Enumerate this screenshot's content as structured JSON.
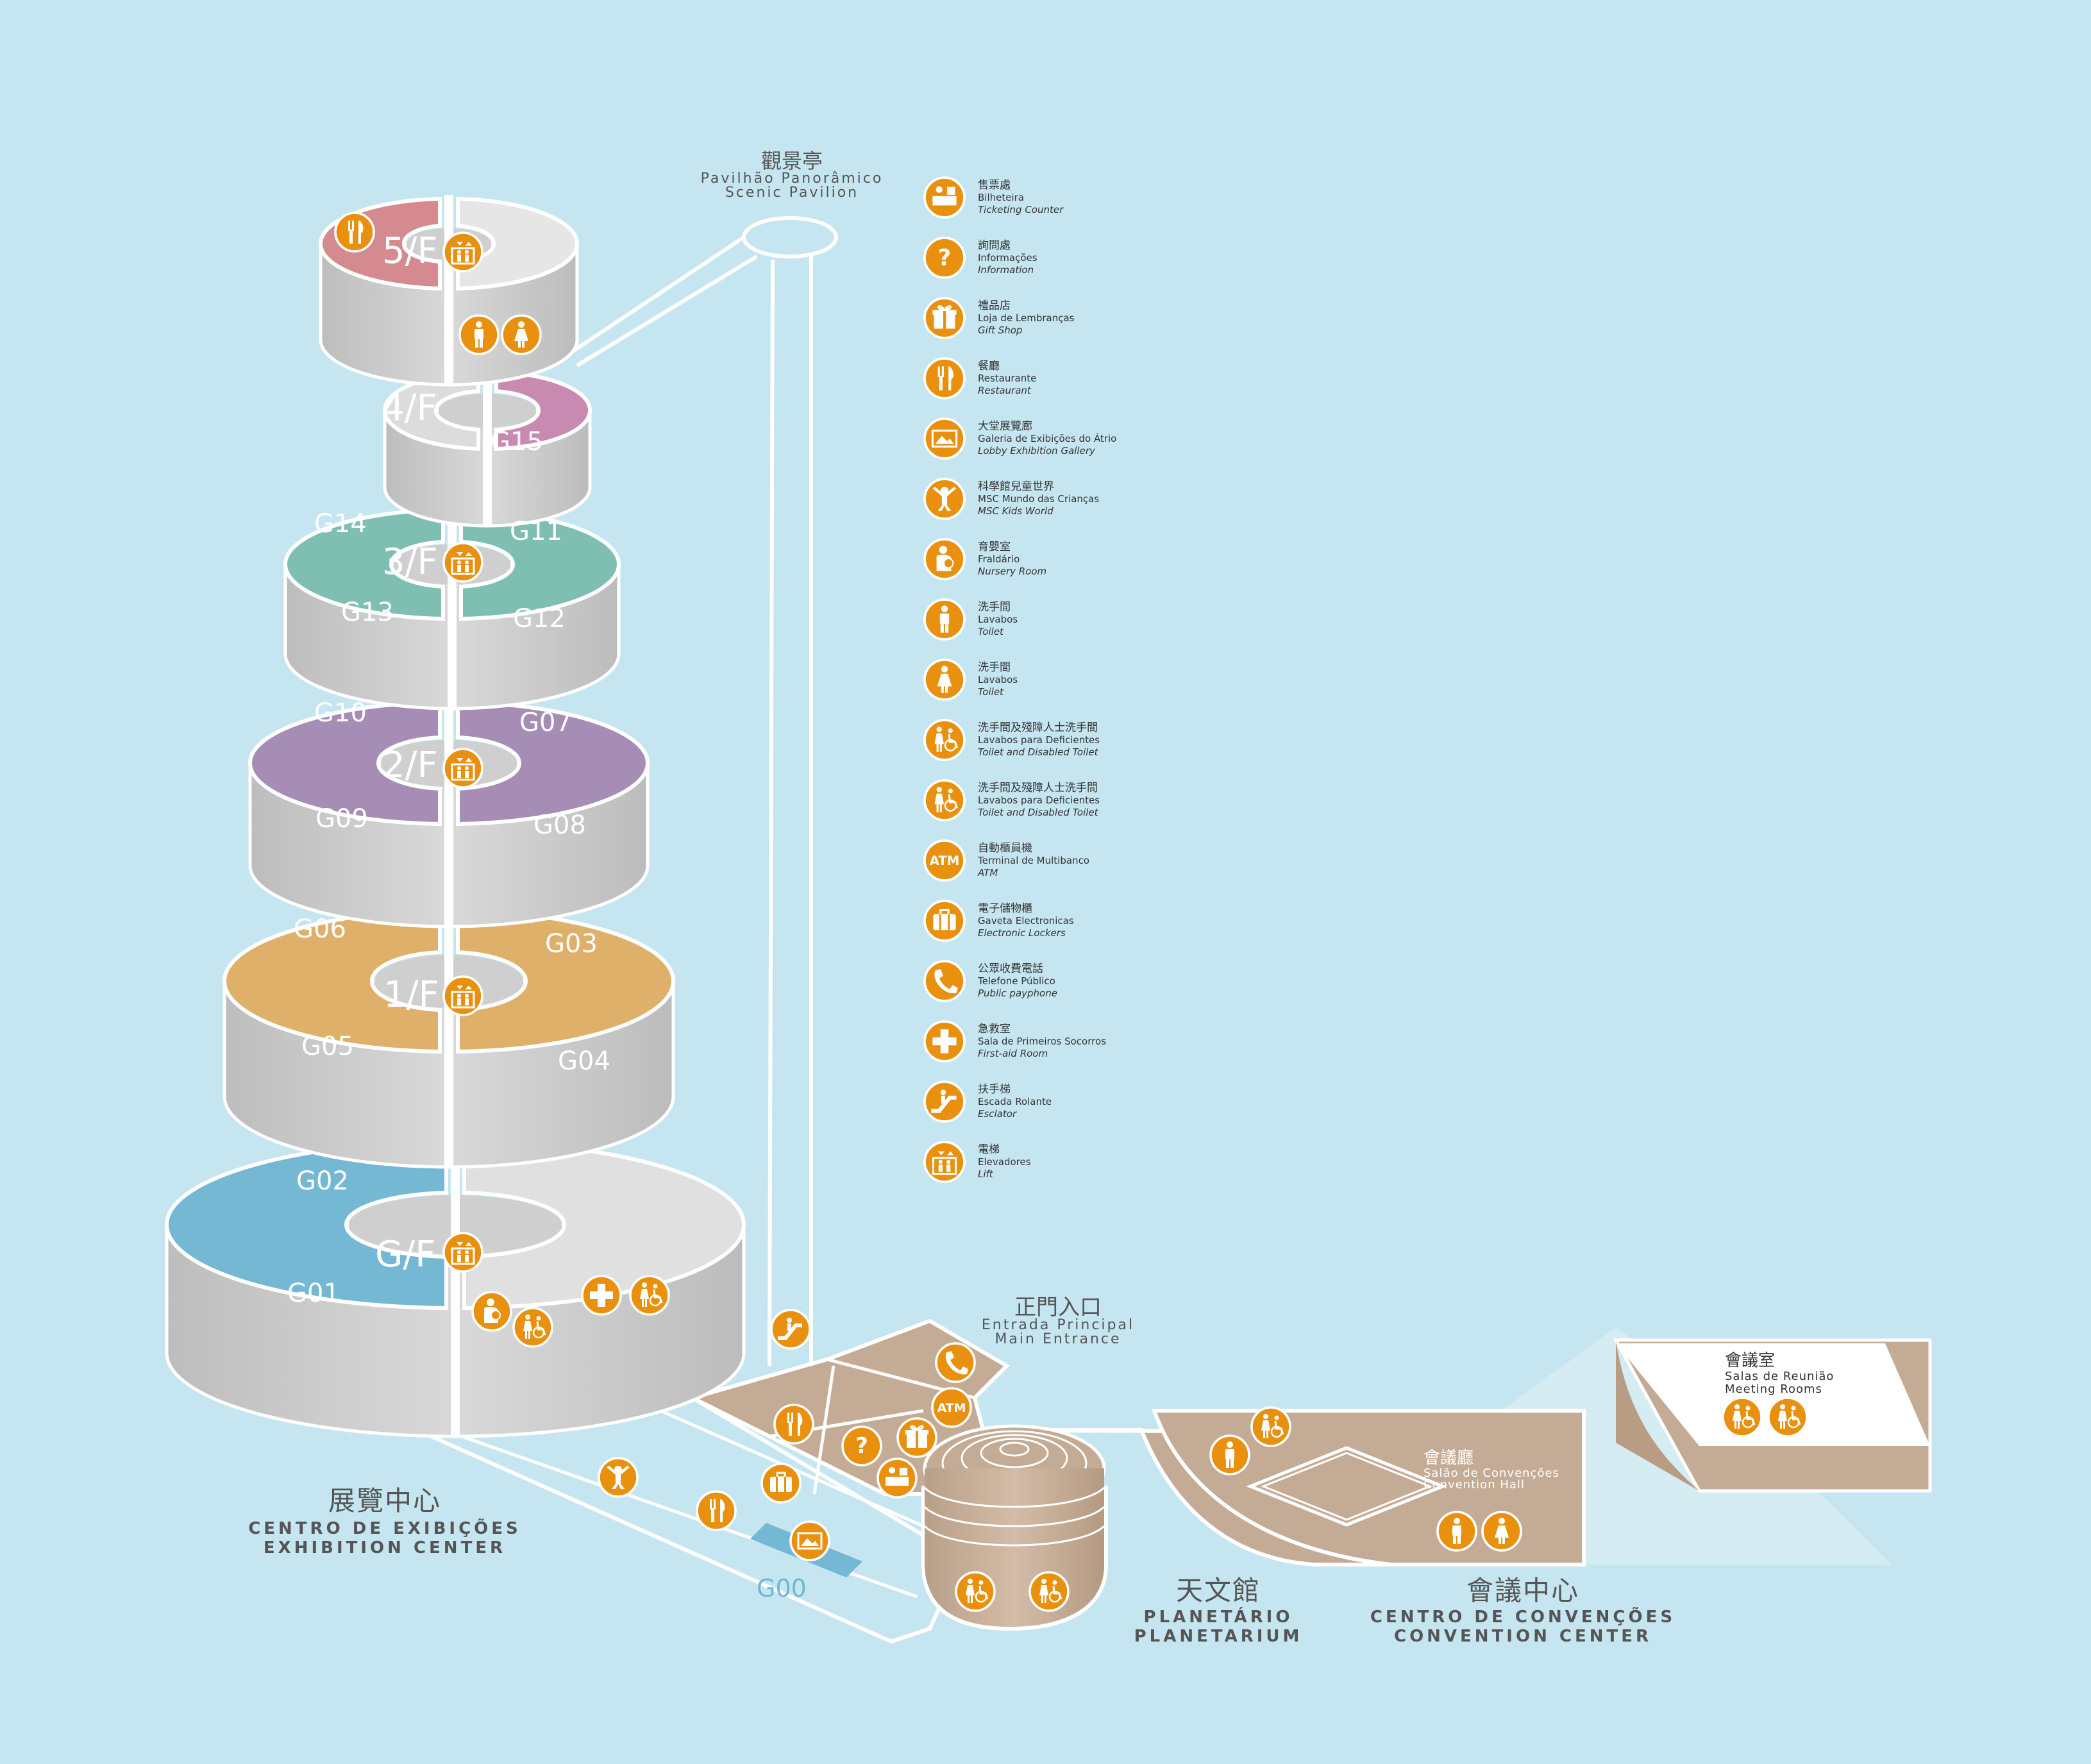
{
  "colors": {
    "background": "#c5e6f1",
    "wall": "#c9c9c9",
    "wall_light": "#dedede",
    "icon": "#e9910f",
    "ground": "#c4ab95",
    "blue_floor": "#74b8d4",
    "yellow_floor": "#dfb06a",
    "purple_floor": "#a68db5",
    "teal_floor": "#7fbfb2",
    "pink_floor": "#c98ab2",
    "red_floor": "#d58a8f"
  },
  "floors": {
    "gf": "G/F",
    "f1": "1/F",
    "f2": "2/F",
    "f3": "3/F",
    "f4": "4/F",
    "f5": "5/F"
  },
  "galleries": {
    "g00": "G00",
    "g01": "G01",
    "g02": "G02",
    "g03": "G03",
    "g04": "G04",
    "g05": "G05",
    "g06": "G06",
    "g07": "G07",
    "g08": "G08",
    "g09": "G09",
    "g10": "G10",
    "g11": "G11",
    "g12": "G12",
    "g13": "G13",
    "g14": "G14",
    "g15": "G15"
  },
  "places": {
    "scenic": {
      "cn": "觀景亭",
      "pt": "Pavilhão Panorâmico",
      "en": "Scenic Pavilion"
    },
    "main_entrance": {
      "cn": "正門入口",
      "pt": "Entrada Principal",
      "en": "Main Entrance"
    },
    "meeting_rooms": {
      "cn": "會議室",
      "pt": "Salas de Reunião",
      "en": "Meeting Rooms"
    },
    "convention_hall": {
      "cn": "會議廳",
      "pt": "Salão de Convenções",
      "en": "Convention Hall"
    },
    "exhibition": {
      "cn": "展覽中心",
      "pt": "CENTRO DE EXIBIÇÕES",
      "en": "EXHIBITION CENTER"
    },
    "planetarium": {
      "cn": "天文館",
      "pt": "PLANETÁRIO",
      "en": "PLANETARIUM"
    },
    "convention": {
      "cn": "會議中心",
      "pt": "CENTRO DE CONVENÇÕES",
      "en": "CONVENTION CENTER"
    }
  },
  "legend": [
    {
      "icon": "ticket-icon",
      "cn": "售票處",
      "pt": "Bilheteira",
      "en": "Ticketing Counter"
    },
    {
      "icon": "info-icon",
      "cn": "詢問處",
      "pt": "Informações",
      "en": "Information"
    },
    {
      "icon": "gift-icon",
      "cn": "禮品店",
      "pt": "Loja de Lembranças",
      "en": "Gift Shop"
    },
    {
      "icon": "restaurant-icon",
      "cn": "餐廳",
      "pt": "Restaurante",
      "en": "Restaurant"
    },
    {
      "icon": "gallery-icon",
      "cn": "大堂展覽廊",
      "pt": "Galeria de Exibições do Átrio",
      "en": "Lobby Exhibition Gallery"
    },
    {
      "icon": "kids-icon",
      "cn": "科學館兒童世界",
      "pt": "MSC Mundo das Crianças",
      "en": "MSC Kids World"
    },
    {
      "icon": "nursery-icon",
      "cn": "育嬰室",
      "pt": "Fraldário",
      "en": "Nursery Room"
    },
    {
      "icon": "toilet-male-icon",
      "cn": "洗手間",
      "pt": "Lavabos",
      "en": "Toilet"
    },
    {
      "icon": "toilet-female-icon",
      "cn": "洗手間",
      "pt": "Lavabos",
      "en": "Toilet"
    },
    {
      "icon": "disabled-toilet-icon",
      "cn": "洗手間及殘障人士洗手間",
      "pt": "Lavabos para Deficientes",
      "en": "Toilet and Disabled Toilet"
    },
    {
      "icon": "disabled-toilet-icon",
      "cn": "洗手間及殘障人士洗手間",
      "pt": "Lavabos para Deficientes",
      "en": "Toilet and Disabled Toilet"
    },
    {
      "icon": "atm-icon",
      "cn": "自動櫃員機",
      "pt": "Terminal de Multibanco",
      "en": "ATM"
    },
    {
      "icon": "locker-icon",
      "cn": "電子儲物櫃",
      "pt": "Gaveta Electronicas",
      "en": "Electronic Lockers"
    },
    {
      "icon": "phone-icon",
      "cn": "公眾收費電話",
      "pt": "Telefone Público",
      "en": "Public payphone"
    },
    {
      "icon": "first-aid-icon",
      "cn": "急救室",
      "pt": "Sala de Primeiros Socorros",
      "en": "First-aid Room"
    },
    {
      "icon": "escalator-icon",
      "cn": "扶手梯",
      "pt": "Escada Rolante",
      "en": "Esclator"
    },
    {
      "icon": "lift-icon",
      "cn": "電梯",
      "pt": "Elevadores",
      "en": "Lift"
    }
  ],
  "icon_text": {
    "atm": "ATM",
    "info": "?"
  }
}
